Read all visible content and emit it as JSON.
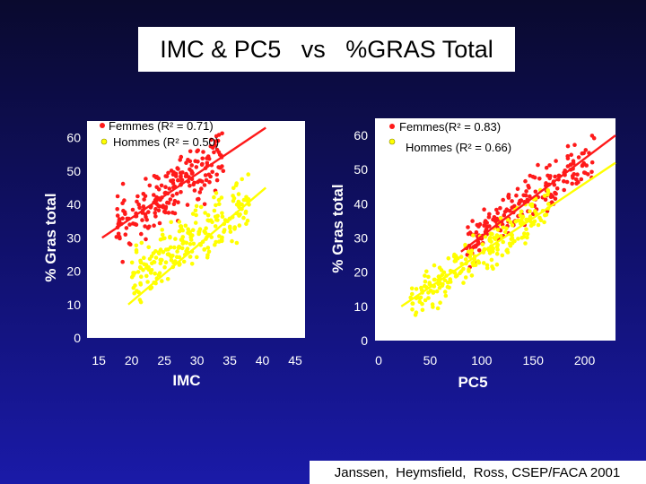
{
  "slide": {
    "title": "IMC & PC5   vs   %GRAS Total",
    "credit": "Janssen,  Heymsfield,  Ross, CSEP/FACA 2001",
    "background_top": "#0a0a2e",
    "background_bottom": "#1a1aa8",
    "title_bg": "#ffffff"
  },
  "chart_data": [
    {
      "type": "scatter",
      "title": "",
      "xlabel": "IMC",
      "ylabel": "% Gras total",
      "xlim": [
        13.2,
        46.5
      ],
      "ylim": [
        0,
        65
      ],
      "xticks": [
        15,
        20,
        25,
        30,
        35,
        40,
        45
      ],
      "yticks": [
        0,
        10,
        20,
        30,
        40,
        50,
        60
      ],
      "legend_position": "top-left",
      "grid": false,
      "series": [
        {
          "name": "Femmes (R² = 0.71)",
          "color": "#ff1a1a",
          "r2": "0.71",
          "trend": {
            "x": [
              15.5,
              40.5
            ],
            "y": [
              30,
              63
            ]
          },
          "cloud": {
            "x_min": 17.5,
            "x_max": 34,
            "slope": 1.32,
            "intercept": 9.5,
            "spread": 4.2,
            "count": 210,
            "seed": 11
          }
        },
        {
          "name": "Hommes (R² = 0.50)",
          "color": "#ffff00",
          "r2": "0.50",
          "trend": {
            "x": [
              19.5,
              40.5
            ],
            "y": [
              10,
              45
            ]
          },
          "cloud": {
            "x_min": 20,
            "x_max": 38,
            "slope": 1.2,
            "intercept": -5.5,
            "spread": 4.2,
            "count": 230,
            "seed": 23
          }
        }
      ]
    },
    {
      "type": "scatter",
      "title": "",
      "xlabel": "PC5",
      "ylabel": "% Gras total",
      "xlim": [
        -3.5,
        230
      ],
      "ylim": [
        0,
        65
      ],
      "xticks": [
        0,
        50,
        100,
        150,
        200
      ],
      "yticks": [
        0,
        10,
        20,
        30,
        40,
        50,
        60
      ],
      "legend_position": "top-left",
      "grid": false,
      "series": [
        {
          "name": "Femmes(R² = 0.83)",
          "color": "#ff1a1a",
          "r2": "0.83",
          "trend": {
            "x": [
              80,
              235
            ],
            "y": [
              26,
              60
            ]
          },
          "cloud": {
            "x_min": 85,
            "x_max": 210,
            "slope": 0.21,
            "intercept": 10,
            "spread": 3.2,
            "count": 200,
            "seed": 37
          }
        },
        {
          "name": "Hommes (R² = 0.66)",
          "color": "#ffff00",
          "r2": "0.66",
          "trend": {
            "x": [
              22,
              235
            ],
            "y": [
              10,
              52
            ]
          },
          "cloud": {
            "x_min": 30,
            "x_max": 165,
            "slope": 0.21,
            "intercept": 5,
            "spread": 3.2,
            "count": 220,
            "seed": 53
          }
        }
      ]
    }
  ]
}
